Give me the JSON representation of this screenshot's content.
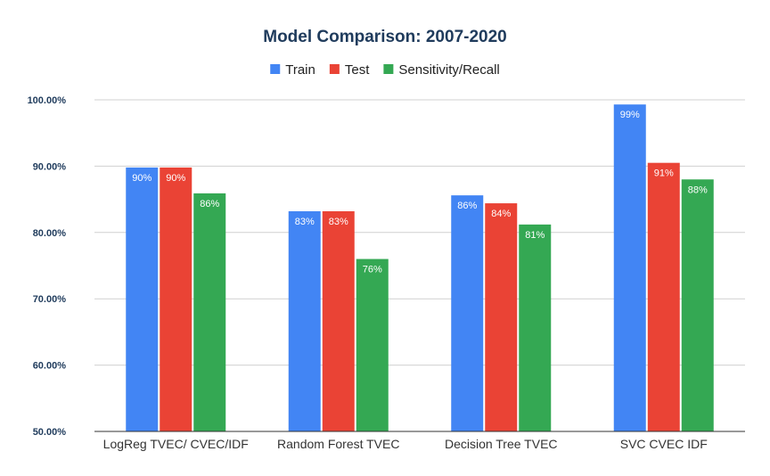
{
  "chart_data": {
    "type": "bar",
    "title": "Model Comparison: 2007-2020",
    "xlabel": "",
    "ylabel": "",
    "categories": [
      "LogReg TVEC/ CVEC/IDF",
      "Random Forest TVEC",
      "Decision Tree TVEC",
      "SVC CVEC IDF"
    ],
    "series": [
      {
        "name": "Train",
        "color": "#4285f4",
        "values": [
          0.898,
          0.832,
          0.856,
          0.993
        ],
        "labels": [
          "90%",
          "83%",
          "86%",
          "99%"
        ]
      },
      {
        "name": "Test",
        "color": "#ea4335",
        "values": [
          0.898,
          0.832,
          0.844,
          0.905
        ],
        "labels": [
          "90%",
          "83%",
          "84%",
          "91%"
        ]
      },
      {
        "name": "Sensitivity/Recall",
        "color": "#34a853",
        "values": [
          0.859,
          0.76,
          0.812,
          0.88
        ],
        "labels": [
          "86%",
          "76%",
          "81%",
          "88%"
        ]
      }
    ],
    "ylim": [
      0.5,
      1.0
    ],
    "yticks": [
      0.5,
      0.6,
      0.7,
      0.8,
      0.9,
      1.0
    ],
    "ytick_labels": [
      "50.00%",
      "60.00%",
      "70.00%",
      "80.00%",
      "90.00%",
      "100.00%"
    ],
    "grid": true,
    "legend_position": "top-center"
  }
}
